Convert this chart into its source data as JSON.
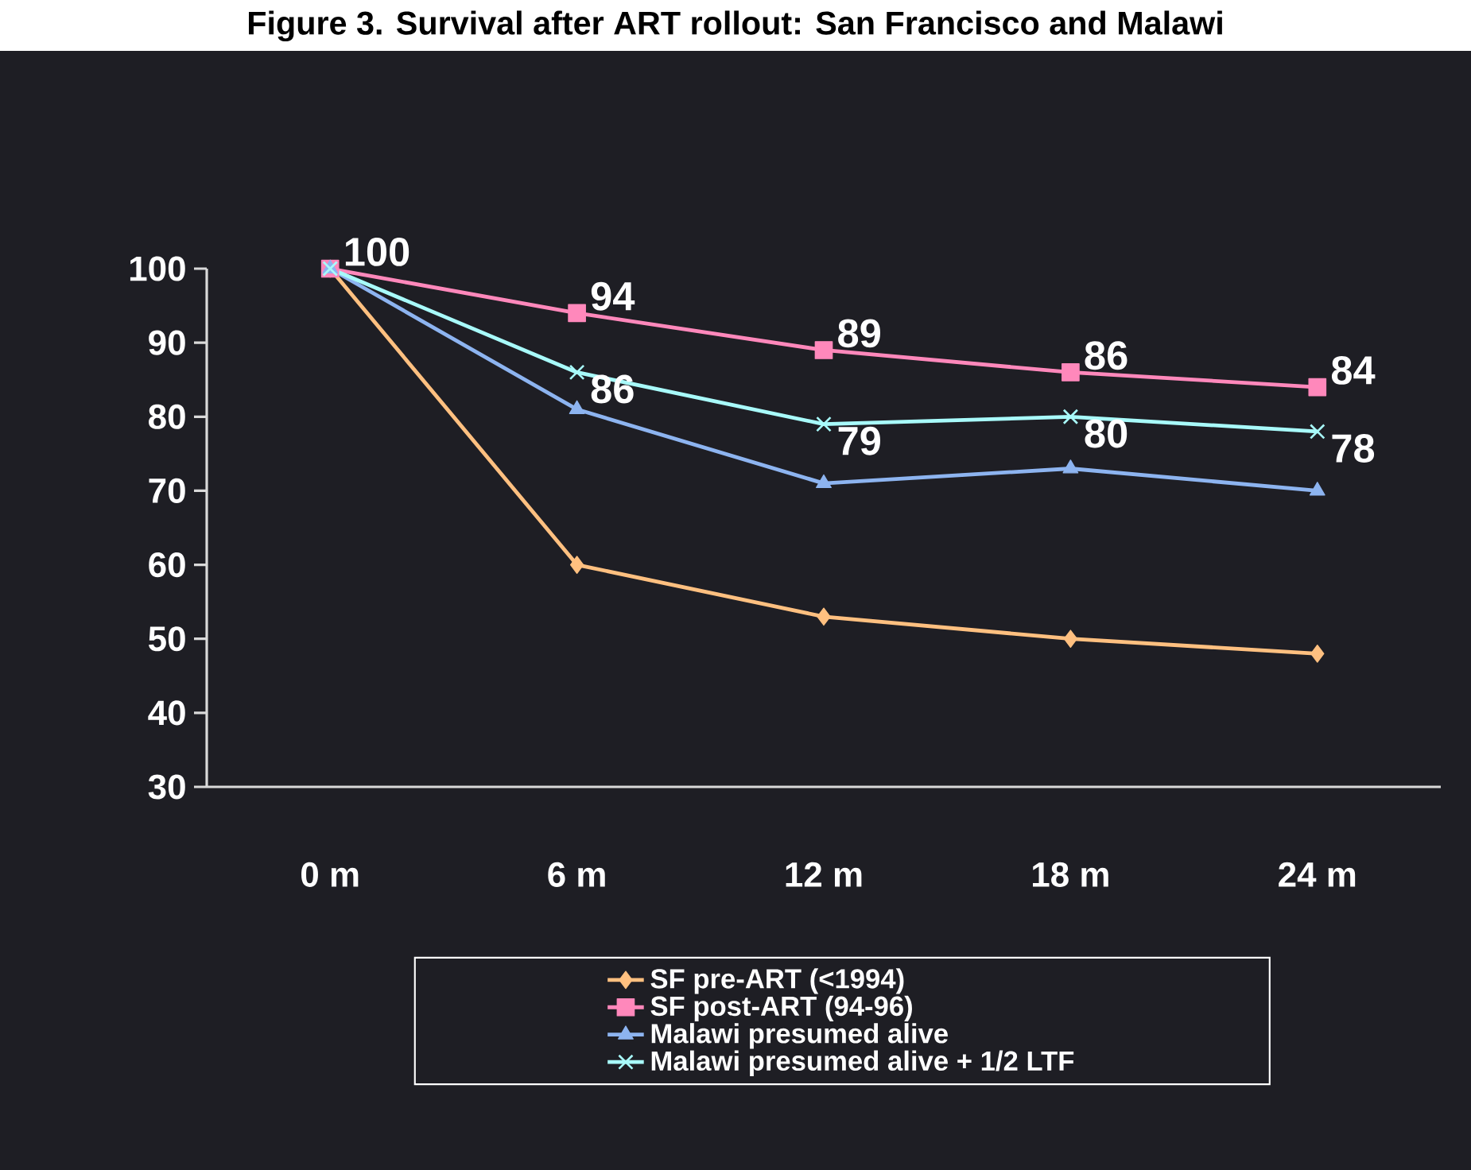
{
  "chart_data": {
    "type": "line",
    "title": "Figure 3. Survival after ART rollout: San Francisco and Malawi",
    "categories": [
      "0 m",
      "6 m",
      "12 m",
      "18 m",
      "24 m"
    ],
    "ylim": [
      30,
      100
    ],
    "yticks": [
      30,
      40,
      50,
      60,
      70,
      80,
      90,
      100
    ],
    "legend": "bottom",
    "series": [
      {
        "name": "SF pre-ART (<1994)",
        "color": "#ffc080",
        "marker": "diamond",
        "values": [
          100,
          60,
          53,
          50,
          48
        ]
      },
      {
        "name": "SF post-ART (94-96)",
        "color": "#ff88bb",
        "marker": "square",
        "values": [
          100,
          94,
          89,
          86,
          84
        ],
        "value_labels": [
          "100",
          "94",
          "89",
          "86",
          "84"
        ]
      },
      {
        "name": "Malawi presumed alive",
        "color": "#8db4f0",
        "marker": "triangle",
        "values": [
          100,
          81,
          71,
          73,
          70
        ]
      },
      {
        "name": "Malawi presumed alive + 1/2 LTF",
        "color": "#a8fafa",
        "marker": "cross",
        "values": [
          100,
          86,
          79,
          80,
          78
        ],
        "value_labels": [
          null,
          "86",
          "79",
          "80",
          "78"
        ]
      }
    ]
  }
}
